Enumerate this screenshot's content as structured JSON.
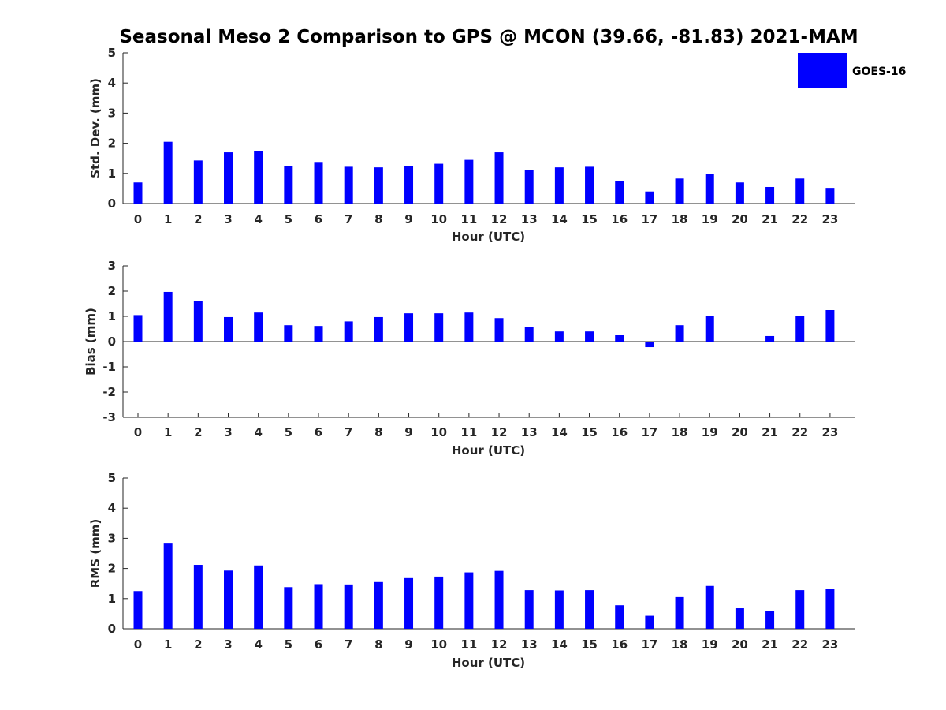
{
  "colors": {
    "bar": "#0000ff",
    "axis": "#262626",
    "background": "#ffffff"
  },
  "chart_data": [
    {
      "type": "bar",
      "title": "Seasonal Meso 2 Comparison to GPS @ MCON (39.66, -81.83) 2021-MAM",
      "xlabel": "Hour (UTC)",
      "ylabel": "Std. Dev. (mm)",
      "ylim": [
        0,
        5
      ],
      "yticks": [
        "0",
        "1",
        "2",
        "3",
        "4",
        "5"
      ],
      "categories": [
        "0",
        "1",
        "2",
        "3",
        "4",
        "5",
        "6",
        "7",
        "8",
        "9",
        "10",
        "11",
        "12",
        "13",
        "14",
        "15",
        "16",
        "17",
        "18",
        "19",
        "20",
        "21",
        "22",
        "23"
      ],
      "series": [
        {
          "name": "GOES-16",
          "values": [
            0.7,
            2.05,
            1.43,
            1.7,
            1.75,
            1.25,
            1.38,
            1.22,
            1.2,
            1.25,
            1.32,
            1.45,
            1.7,
            1.12,
            1.2,
            1.22,
            0.75,
            0.4,
            0.83,
            0.97,
            0.7,
            0.55,
            0.83,
            0.52
          ]
        }
      ],
      "legend": {
        "position": "top-right",
        "entries": [
          "GOES-16"
        ]
      },
      "grid": false
    },
    {
      "type": "bar",
      "xlabel": "Hour (UTC)",
      "ylabel": "Bias (mm)",
      "ylim": [
        -3,
        3
      ],
      "yticks": [
        "-3",
        "-2",
        "-1",
        "0",
        "1",
        "2",
        "3"
      ],
      "categories": [
        "0",
        "1",
        "2",
        "3",
        "4",
        "5",
        "6",
        "7",
        "8",
        "9",
        "10",
        "11",
        "12",
        "13",
        "14",
        "15",
        "16",
        "17",
        "18",
        "19",
        "20",
        "21",
        "22",
        "23"
      ],
      "series": [
        {
          "name": "GOES-16",
          "values": [
            1.05,
            1.97,
            1.6,
            0.97,
            1.15,
            0.65,
            0.62,
            0.8,
            0.97,
            1.12,
            1.12,
            1.15,
            0.93,
            0.58,
            0.4,
            0.4,
            0.25,
            -0.22,
            0.65,
            1.02,
            0.0,
            0.22,
            1.0,
            1.25
          ]
        }
      ],
      "grid": false
    },
    {
      "type": "bar",
      "xlabel": "Hour (UTC)",
      "ylabel": "RMS (mm)",
      "ylim": [
        0,
        5
      ],
      "yticks": [
        "0",
        "1",
        "2",
        "3",
        "4",
        "5"
      ],
      "categories": [
        "0",
        "1",
        "2",
        "3",
        "4",
        "5",
        "6",
        "7",
        "8",
        "9",
        "10",
        "11",
        "12",
        "13",
        "14",
        "15",
        "16",
        "17",
        "18",
        "19",
        "20",
        "21",
        "22",
        "23"
      ],
      "series": [
        {
          "name": "GOES-16",
          "values": [
            1.25,
            2.85,
            2.12,
            1.93,
            2.1,
            1.38,
            1.48,
            1.47,
            1.55,
            1.68,
            1.73,
            1.87,
            1.92,
            1.28,
            1.27,
            1.28,
            0.78,
            0.43,
            1.05,
            1.42,
            0.68,
            0.58,
            1.28,
            1.33
          ]
        }
      ],
      "grid": false
    }
  ]
}
